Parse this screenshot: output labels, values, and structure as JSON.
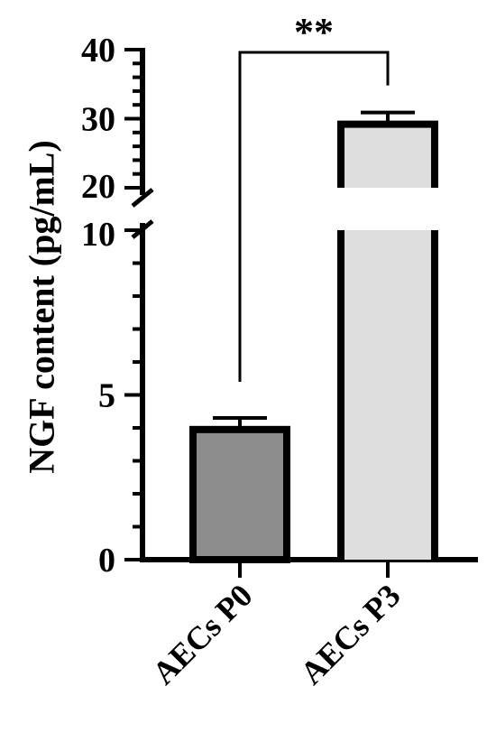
{
  "chart_data": {
    "type": "bar",
    "ylabel": "NGF content (pg/mL)",
    "categories": [
      "AECs P0",
      "AECs P3"
    ],
    "values": [
      3.95,
      29.2
    ],
    "errors": [
      0.35,
      1.7
    ],
    "colors": [
      "#8c8c8c",
      "#dedede"
    ],
    "axis_break": [
      10,
      20
    ],
    "ylim": [
      0,
      40
    ],
    "yticks_lower": [
      "0",
      "5",
      "10"
    ],
    "yticks_upper": [
      "20",
      "30",
      "40"
    ],
    "significance": {
      "label": "**",
      "pair": [
        "AECs P0",
        "AECs P3"
      ]
    }
  }
}
